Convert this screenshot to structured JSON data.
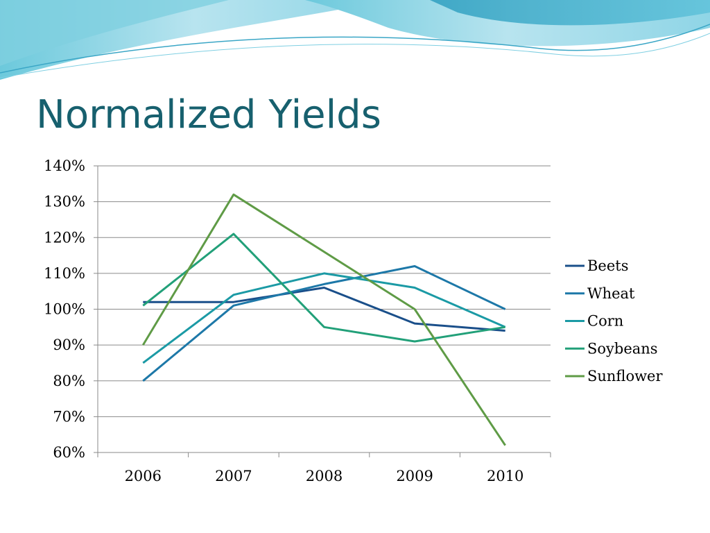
{
  "slide": {
    "title": "Normalized Yields"
  },
  "colors": {
    "title": "#17606e",
    "banner_light": "#b8e4ef",
    "banner_mid": "#6cc9dc",
    "banner_dark": "#2f9fc0"
  },
  "chart_data": {
    "type": "line",
    "title": "",
    "xlabel": "",
    "ylabel": "",
    "categories": [
      "2006",
      "2007",
      "2008",
      "2009",
      "2010"
    ],
    "ylim": [
      0.6,
      1.4
    ],
    "y_ticks": [
      {
        "value": 0.6,
        "label": "60%"
      },
      {
        "value": 0.7,
        "label": "70%"
      },
      {
        "value": 0.8,
        "label": "80%"
      },
      {
        "value": 0.9,
        "label": "90%"
      },
      {
        "value": 1.0,
        "label": "100%"
      },
      {
        "value": 1.1,
        "label": "110%"
      },
      {
        "value": 1.2,
        "label": "120%"
      },
      {
        "value": 1.3,
        "label": "130%"
      },
      {
        "value": 1.4,
        "label": "140%"
      }
    ],
    "grid": true,
    "legend_position": "right",
    "series": [
      {
        "name": "Beets",
        "color": "#1a4f8a",
        "values": [
          1.02,
          1.02,
          1.06,
          0.96,
          0.94
        ]
      },
      {
        "name": "Wheat",
        "color": "#1d78a8",
        "values": [
          0.8,
          1.01,
          1.07,
          1.12,
          1.0
        ]
      },
      {
        "name": "Corn",
        "color": "#1b9aa5",
        "values": [
          0.85,
          1.04,
          1.1,
          1.06,
          0.95
        ]
      },
      {
        "name": "Soybeans",
        "color": "#22a079",
        "values": [
          1.01,
          1.21,
          0.95,
          0.91,
          0.95
        ]
      },
      {
        "name": "Sunflower",
        "color": "#5f9b46",
        "values": [
          0.9,
          1.32,
          1.16,
          1.0,
          0.62
        ]
      }
    ]
  }
}
